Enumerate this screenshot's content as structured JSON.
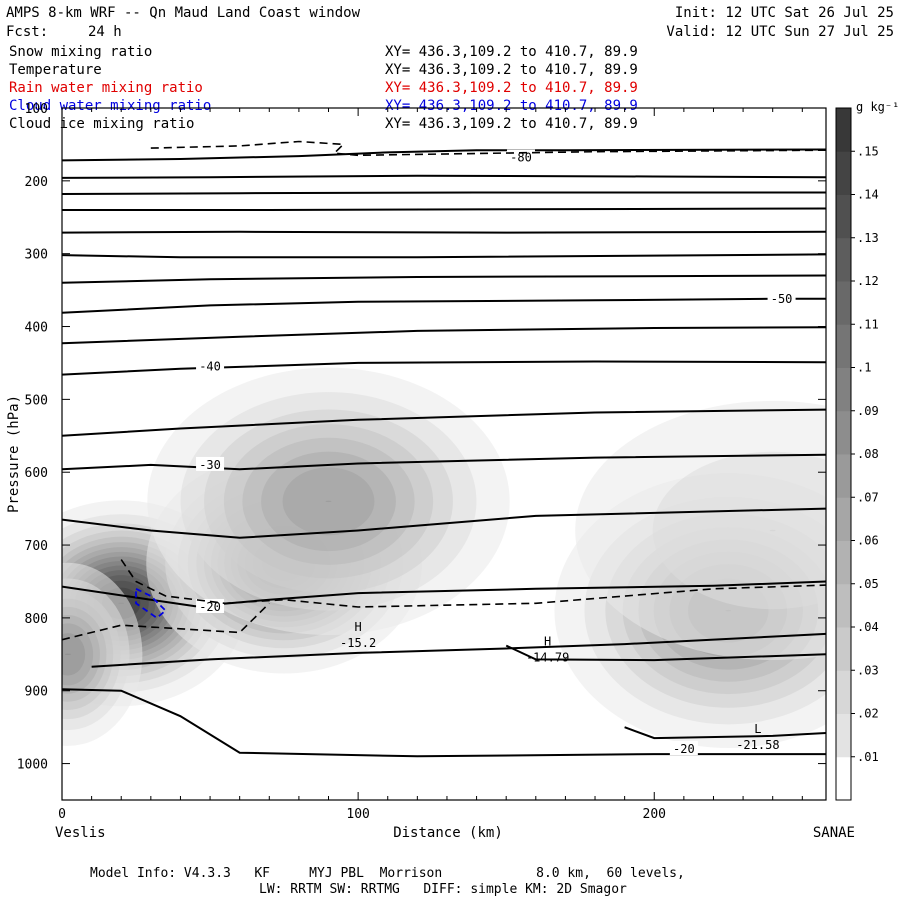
{
  "header": {
    "title": "AMPS 8-km WRF -- Qn Maud Land Coast window",
    "forecast_label": "Fcst:",
    "forecast_value": "24 h",
    "init": "Init: 12 UTC Sat 26 Jul 25",
    "valid": "Valid: 12 UTC Sun 27 Jul 25"
  },
  "variables": [
    {
      "name": "Snow mixing ratio",
      "xy": "XY= 436.3,109.2 to 410.7, 89.9",
      "color": "#000000"
    },
    {
      "name": "Temperature",
      "xy": "XY= 436.3,109.2 to 410.7, 89.9",
      "color": "#000000"
    },
    {
      "name": "Rain water mixing ratio",
      "xy": "XY= 436.3,109.2 to 410.7, 89.9",
      "color": "#e00000"
    },
    {
      "name": "Cloud water mixing ratio",
      "xy": "XY= 436.3,109.2 to 410.7, 89.9",
      "color": "#0000e0"
    },
    {
      "name": "Cloud ice mixing ratio",
      "xy": "XY= 436.3,109.2 to 410.7, 89.9",
      "color": "#000000"
    }
  ],
  "footer": {
    "line1": "Model Info: V4.3.3   KF     MYJ PBL  Morrison            8.0 km,  60 levels,",
    "line2": "LW: RRTM SW: RRTMG   DIFF: simple KM: 2D Smagor"
  },
  "chart_data": {
    "type": "contour",
    "xlabel": "Distance (km)",
    "ylabel": "Pressure (hPa)",
    "xlim": [
      0,
      258
    ],
    "ylim": [
      1050,
      100
    ],
    "x_ticks": [
      0,
      100,
      200
    ],
    "y_ticks": [
      100,
      200,
      300,
      400,
      500,
      600,
      700,
      800,
      900,
      1000
    ],
    "x_end_labels": {
      "left": "Veslis",
      "right": "SANAE"
    },
    "colorbar": {
      "unit": "g kg⁻¹",
      "ticks": [
        ".01",
        ".02",
        ".03",
        ".04",
        ".05",
        ".06",
        ".07",
        ".08",
        ".09",
        ".1",
        ".11",
        ".12",
        ".13",
        ".14",
        ".15"
      ],
      "range": [
        0,
        0.16
      ]
    },
    "snow_blobs": [
      {
        "cx": 20,
        "cy": 780,
        "peak": 0.16,
        "sx": 18,
        "sy": 60
      },
      {
        "cx": 75,
        "cy": 725,
        "peak": 0.15,
        "sx": 20,
        "sy": 65
      },
      {
        "cx": 90,
        "cy": 640,
        "peak": 0.08,
        "sx": 30,
        "sy": 90
      },
      {
        "cx": 2,
        "cy": 850,
        "peak": 0.09,
        "sx": 12,
        "sy": 60
      },
      {
        "cx": 225,
        "cy": 790,
        "peak": 0.09,
        "sx": 28,
        "sy": 90
      },
      {
        "cx": 240,
        "cy": 680,
        "peak": 0.03,
        "sx": 45,
        "sy": 120
      }
    ],
    "temperature_lines": [
      {
        "p": [
          [
            0,
            172
          ],
          [
            40,
            170
          ],
          [
            80,
            166
          ],
          [
            110,
            161
          ],
          [
            140,
            158
          ],
          [
            170,
            158
          ],
          [
            258,
            157
          ]
        ],
        "label": "-80",
        "lx": 155,
        "ly": 168
      },
      {
        "p": [
          [
            0,
            196
          ],
          [
            50,
            195
          ],
          [
            120,
            193
          ],
          [
            200,
            194
          ],
          [
            258,
            195
          ]
        ]
      },
      {
        "p": [
          [
            0,
            218
          ],
          [
            60,
            217
          ],
          [
            140,
            216
          ],
          [
            200,
            216
          ],
          [
            258,
            216
          ]
        ]
      },
      {
        "p": [
          [
            0,
            240
          ],
          [
            70,
            240
          ],
          [
            150,
            239
          ],
          [
            258,
            238
          ]
        ]
      },
      {
        "p": [
          [
            0,
            271
          ],
          [
            60,
            270
          ],
          [
            150,
            271
          ],
          [
            258,
            270
          ]
        ]
      },
      {
        "p": [
          [
            0,
            302
          ],
          [
            40,
            305
          ],
          [
            120,
            305
          ],
          [
            258,
            301
          ]
        ]
      },
      {
        "p": [
          [
            0,
            340
          ],
          [
            50,
            335
          ],
          [
            120,
            332
          ],
          [
            258,
            330
          ]
        ]
      },
      {
        "p": [
          [
            0,
            381
          ],
          [
            50,
            371
          ],
          [
            100,
            366
          ],
          [
            180,
            364
          ],
          [
            240,
            362
          ],
          [
            258,
            362
          ]
        ],
        "label": "-50",
        "lx": 243,
        "ly": 362
      },
      {
        "p": [
          [
            0,
            423
          ],
          [
            60,
            414
          ],
          [
            120,
            406
          ],
          [
            200,
            402
          ],
          [
            258,
            401
          ]
        ]
      },
      {
        "p": [
          [
            0,
            466
          ],
          [
            40,
            458
          ],
          [
            100,
            450
          ],
          [
            180,
            448
          ],
          [
            258,
            449
          ]
        ],
        "label": "-40",
        "lx": 50,
        "ly": 455
      },
      {
        "p": [
          [
            0,
            550
          ],
          [
            40,
            540
          ],
          [
            100,
            528
          ],
          [
            180,
            518
          ],
          [
            258,
            514
          ]
        ]
      },
      {
        "p": [
          [
            0,
            596
          ],
          [
            30,
            590
          ],
          [
            60,
            596
          ],
          [
            100,
            588
          ],
          [
            180,
            580
          ],
          [
            258,
            576
          ]
        ],
        "label": "-30",
        "lx": 50,
        "ly": 590
      },
      {
        "p": [
          [
            0,
            665
          ],
          [
            30,
            680
          ],
          [
            60,
            690
          ],
          [
            100,
            680
          ],
          [
            160,
            660
          ],
          [
            258,
            650
          ]
        ]
      },
      {
        "p": [
          [
            0,
            757
          ],
          [
            30,
            775
          ],
          [
            45,
            784
          ],
          [
            70,
            775
          ],
          [
            100,
            766
          ],
          [
            160,
            760
          ],
          [
            220,
            756
          ],
          [
            258,
            750
          ]
        ],
        "label": "-20",
        "lx": 50,
        "ly": 785
      },
      {
        "p": [
          [
            10,
            867
          ],
          [
            50,
            857
          ],
          [
            100,
            848
          ],
          [
            150,
            842
          ],
          [
            190,
            836
          ],
          [
            258,
            822
          ]
        ]
      },
      {
        "p": [
          [
            150,
            838
          ],
          [
            160,
            857
          ],
          [
            200,
            858
          ],
          [
            258,
            850
          ]
        ],
        "label": "-14.79",
        "lx": 164,
        "ly": 860
      },
      {
        "p": [
          [
            0,
            898
          ],
          [
            20,
            900
          ],
          [
            40,
            935
          ],
          [
            60,
            985
          ],
          [
            120,
            990
          ],
          [
            200,
            987
          ],
          [
            258,
            987
          ]
        ],
        "label": "-20",
        "lx": 210,
        "ly": 980
      },
      {
        "p": [
          [
            190,
            950
          ],
          [
            200,
            965
          ],
          [
            240,
            962
          ],
          [
            258,
            958
          ]
        ],
        "label": "-21.58",
        "lx": 235,
        "ly": 975
      }
    ],
    "markers": [
      {
        "letter": "H",
        "value": "-15.2",
        "x": 100,
        "y": 818
      },
      {
        "letter": "H",
        "value": "-14.79",
        "x": 164,
        "y": 838
      },
      {
        "letter": "L",
        "value": "-21.58",
        "x": 235,
        "y": 958
      }
    ],
    "cloud_ice_dashed": [
      [
        [
          30,
          155
        ],
        [
          60,
          152
        ],
        [
          80,
          146
        ],
        [
          95,
          150
        ],
        [
          92,
          162
        ],
        [
          100,
          165
        ],
        [
          180,
          160
        ],
        [
          258,
          158
        ]
      ],
      [
        [
          20,
          720
        ],
        [
          25,
          750
        ],
        [
          35,
          770
        ],
        [
          55,
          780
        ],
        [
          75,
          775
        ],
        [
          100,
          785
        ],
        [
          160,
          780
        ],
        [
          220,
          760
        ],
        [
          258,
          755
        ]
      ],
      [
        [
          0,
          830
        ],
        [
          20,
          810
        ],
        [
          40,
          815
        ],
        [
          60,
          820
        ],
        [
          65,
          800
        ],
        [
          70,
          780
        ]
      ]
    ],
    "cloud_water_dashed": [
      [
        [
          25,
          760
        ],
        [
          30,
          770
        ],
        [
          35,
          790
        ],
        [
          32,
          800
        ],
        [
          25,
          780
        ],
        [
          25,
          760
        ]
      ]
    ]
  }
}
